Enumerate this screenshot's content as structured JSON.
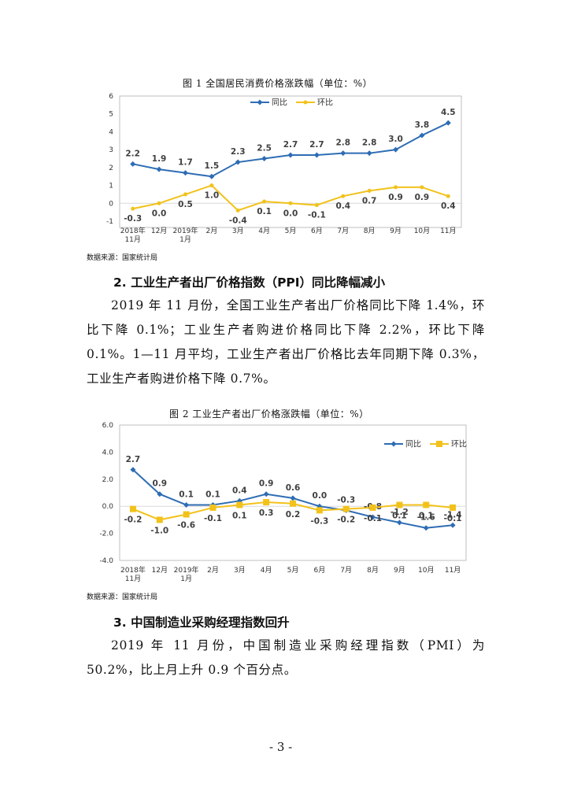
{
  "figure1": {
    "title": "图 1   全国居民消费价格涨跌幅（单位：%）",
    "source": "数据来源：国家统计局",
    "chart_data": {
      "type": "line",
      "categories": [
        "2018年\n11月",
        "12月",
        "2019年\n1月",
        "2月",
        "3月",
        "4月",
        "5月",
        "6月",
        "7月",
        "8月",
        "9月",
        "10月",
        "11月"
      ],
      "series": [
        {
          "name": "同比",
          "color": "#2E6DB4",
          "marker": "diamond",
          "values": [
            2.2,
            1.9,
            1.7,
            1.5,
            2.3,
            2.5,
            2.7,
            2.7,
            2.8,
            2.8,
            3.0,
            3.8,
            4.5
          ],
          "labels": [
            "2.2",
            "1.9",
            "1.7",
            "1.5",
            "2.3",
            "2.5",
            "2.7",
            "2.7",
            "2.8",
            "2.8",
            "3.0",
            "3.8",
            "4.5"
          ]
        },
        {
          "name": "环比",
          "color": "#F2C21B",
          "marker": "circle",
          "values": [
            -0.3,
            0.0,
            0.5,
            1.0,
            -0.4,
            0.1,
            0.0,
            -0.1,
            0.4,
            0.7,
            0.9,
            0.9,
            0.4
          ],
          "labels": [
            "-0.3",
            "0.0",
            "0.5",
            "1.0",
            "-0.4",
            "0.1",
            "0.0",
            "-0.1",
            "0.4",
            "0.7",
            "0.9",
            "0.9",
            "0.4"
          ]
        }
      ],
      "yticks": [
        "6",
        "5",
        "4",
        "3",
        "2",
        "1",
        "0",
        "-1"
      ],
      "ylim": [
        -1,
        6
      ],
      "grid": false,
      "legend": "top-right"
    }
  },
  "section2": {
    "heading": "2. 工业生产者出厂价格指数（PPI）同比降幅减小",
    "paragraph": "2019 年 11 月份，全国工业生产者出厂价格同比下降 1.4%，环比下降 0.1%；工业生产者购进价格同比下降 2.2%，环比下降 0.1%。1—11 月平均，工业生产者出厂价格比去年同期下降 0.3%，工业生产者购进价格下降 0.7%。"
  },
  "figure2": {
    "title": "图 2   工业生产者出厂价格涨跌幅（单位：%）",
    "source": "数据来源：国家统计局",
    "chart_data": {
      "type": "line",
      "categories": [
        "2018年\n11月",
        "12月",
        "2019年\n1月",
        "2月",
        "3月",
        "4月",
        "5月",
        "6月",
        "7月",
        "8月",
        "9月",
        "10月",
        "11月"
      ],
      "series": [
        {
          "name": "同比",
          "color": "#2E6DB4",
          "marker": "diamond",
          "values": [
            2.7,
            0.9,
            0.1,
            0.1,
            0.4,
            0.9,
            0.6,
            0.0,
            -0.3,
            -0.8,
            -1.2,
            -1.6,
            -1.4
          ],
          "labels": [
            "2.7",
            "0.9",
            "0.1",
            "0.1",
            "0.4",
            "0.9",
            "0.6",
            "0.0",
            "-0.3",
            "-0.8",
            "-1.2",
            "-1.6",
            "-1.4"
          ]
        },
        {
          "name": "环比",
          "color": "#F2C21B",
          "marker": "square",
          "values": [
            -0.2,
            -1.0,
            -0.6,
            -0.1,
            0.1,
            0.3,
            0.2,
            -0.3,
            -0.2,
            -0.1,
            0.1,
            0.1,
            -0.1
          ],
          "labels": [
            "-0.2",
            "-1.0",
            "-0.6",
            "-0.1",
            "0.1",
            "0.3",
            "0.2",
            "-0.3",
            "-0.2",
            "-0.1",
            "0.1",
            "0.1",
            "-0.1"
          ]
        }
      ],
      "yticks": [
        "6.0",
        "4.0",
        "2.0",
        "0.0",
        "-2.0",
        "-4.0"
      ],
      "ylim": [
        -4,
        6
      ],
      "grid": false,
      "legend": "top-right"
    }
  },
  "section3": {
    "heading": "3. 中国制造业采购经理指数回升",
    "paragraph": "2019 年 11 月份，中国制造业采购经理指数（PMI）为 50.2%，比上月上升 0.9 个百分点。"
  },
  "page_number": "- 3 -"
}
